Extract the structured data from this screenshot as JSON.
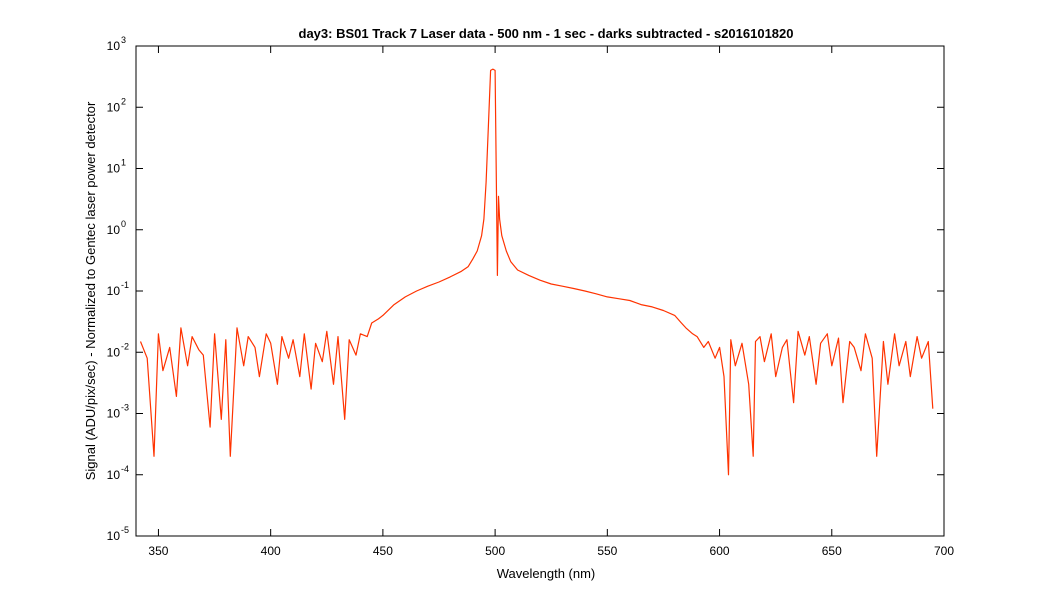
{
  "chart_data": {
    "type": "line",
    "title": "day3: BS01  Track 7 Laser data - 500 nm - 1 sec - darks subtracted - s2016101820",
    "xlabel": "Wavelength (nm)",
    "ylabel": "Signal (ADU/pix/sec) - Normalized to Gentec laser power detector",
    "xlim": [
      340,
      700
    ],
    "ylim": [
      1e-05,
      1000
    ],
    "yscale": "log",
    "grid": false,
    "box": true,
    "line_color": "#ff3300",
    "x_ticks": [
      350,
      400,
      450,
      500,
      550,
      600,
      650,
      700
    ],
    "x_tick_labels": [
      "350",
      "400",
      "450",
      "500",
      "550",
      "600",
      "650",
      "700"
    ],
    "y_ticks": [
      {
        "value": 1e-05,
        "base": "10",
        "exp": "-5"
      },
      {
        "value": 0.0001,
        "base": "10",
        "exp": "-4"
      },
      {
        "value": 0.001,
        "base": "10",
        "exp": "-3"
      },
      {
        "value": 0.01,
        "base": "10",
        "exp": "-2"
      },
      {
        "value": 0.1,
        "base": "10",
        "exp": "-1"
      },
      {
        "value": 1,
        "base": "10",
        "exp": "0"
      },
      {
        "value": 10,
        "base": "10",
        "exp": "1"
      },
      {
        "value": 100,
        "base": "10",
        "exp": "2"
      },
      {
        "value": 1000,
        "base": "10",
        "exp": "3"
      }
    ],
    "series": [
      {
        "x": [
          342,
          345,
          348,
          350,
          352,
          355,
          358,
          360,
          363,
          365,
          368,
          370,
          372,
          373,
          375,
          378,
          380,
          382,
          385,
          388,
          390,
          393,
          395,
          398,
          400,
          403,
          405,
          408,
          410,
          413,
          415,
          418,
          420,
          423,
          425,
          428,
          430,
          433,
          435,
          438,
          440,
          443,
          445,
          448,
          450,
          455,
          460,
          465,
          470,
          475,
          480,
          485,
          488,
          490,
          492,
          494,
          495,
          496,
          497,
          498,
          499,
          500,
          501,
          501.5,
          502,
          503,
          505,
          507,
          510,
          515,
          520,
          525,
          530,
          535,
          540,
          545,
          550,
          555,
          560,
          565,
          570,
          575,
          580,
          583,
          585,
          588,
          590,
          593,
          595,
          598,
          600,
          602,
          604,
          605,
          607,
          610,
          613,
          615,
          616,
          618,
          620,
          623,
          625,
          628,
          630,
          633,
          635,
          638,
          640,
          643,
          645,
          648,
          650,
          653,
          655,
          658,
          660,
          663,
          665,
          668,
          670,
          673,
          675,
          678,
          680,
          683,
          685,
          688,
          690,
          693,
          695
        ],
        "y": [
          0.015,
          0.008,
          0.0002,
          0.02,
          0.005,
          0.012,
          0.0019,
          0.025,
          0.006,
          0.018,
          0.011,
          0.009,
          0.0015,
          0.0006,
          0.02,
          0.0008,
          0.016,
          0.0002,
          0.025,
          0.006,
          0.018,
          0.012,
          0.004,
          0.02,
          0.014,
          0.003,
          0.018,
          0.008,
          0.016,
          0.004,
          0.02,
          0.0025,
          0.014,
          0.007,
          0.022,
          0.003,
          0.018,
          0.0008,
          0.016,
          0.009,
          0.02,
          0.018,
          0.03,
          0.035,
          0.04,
          0.06,
          0.08,
          0.1,
          0.12,
          0.14,
          0.17,
          0.21,
          0.25,
          0.33,
          0.45,
          0.8,
          1.5,
          6,
          50,
          400,
          420,
          400,
          0.18,
          3.5,
          1.5,
          0.8,
          0.45,
          0.3,
          0.22,
          0.18,
          0.15,
          0.13,
          0.12,
          0.11,
          0.1,
          0.09,
          0.08,
          0.075,
          0.07,
          0.06,
          0.055,
          0.048,
          0.04,
          0.03,
          0.025,
          0.02,
          0.018,
          0.012,
          0.015,
          0.008,
          0.012,
          0.004,
          0.0001,
          0.016,
          0.006,
          0.014,
          0.003,
          0.0002,
          0.015,
          0.018,
          0.007,
          0.02,
          0.004,
          0.012,
          0.016,
          0.0015,
          0.022,
          0.009,
          0.018,
          0.003,
          0.014,
          0.02,
          0.006,
          0.017,
          0.0015,
          0.015,
          0.012,
          0.005,
          0.02,
          0.008,
          0.0002,
          0.015,
          0.003,
          0.02,
          0.006,
          0.015,
          0.004,
          0.018,
          0.008,
          0.015,
          0.0012
        ]
      }
    ]
  }
}
